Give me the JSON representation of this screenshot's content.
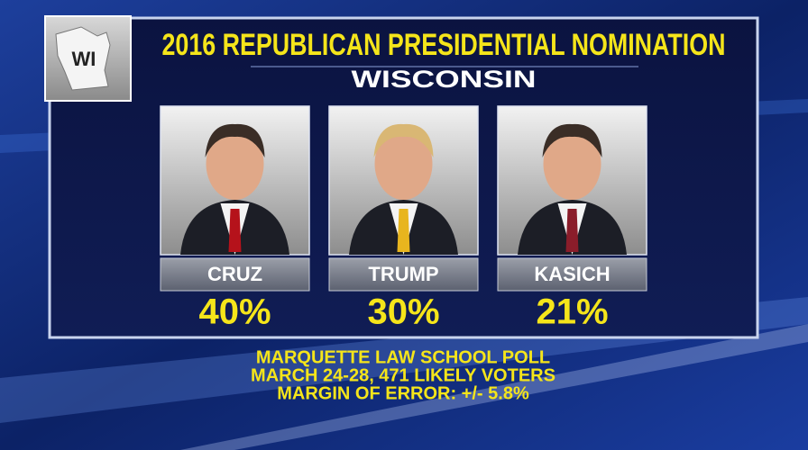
{
  "badge": "WI",
  "header": {
    "title": "2016 REPUBLICAN PRESIDENTIAL NOMINATION",
    "subtitle": "WISCONSIN"
  },
  "candidates": [
    {
      "name": "CRUZ",
      "result": "40%"
    },
    {
      "name": "TRUMP",
      "result": "30%"
    },
    {
      "name": "KASICH",
      "result": "21%"
    }
  ],
  "footer": {
    "lines": [
      "MARQUETTE LAW SCHOOL POLL",
      "MARCH 24-28, 471 LIKELY VOTERS",
      "MARGIN OF ERROR: +/- 5.8%"
    ]
  }
}
